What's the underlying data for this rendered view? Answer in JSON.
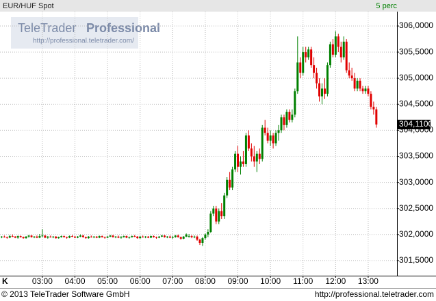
{
  "chart_data": {
    "type": "candlestick",
    "title": "EUR/HUF Spot",
    "interval": "5 perc",
    "watermark": {
      "brand": "TeleTrader",
      "product": "Professional",
      "url": "http://professional.teletrader.com/"
    },
    "footer": {
      "copyright": "© 2013 TeleTrader Software GmbH",
      "url": "http://professional.teletrader.com"
    },
    "corner_label": "K",
    "up_color": "#008000",
    "down_color": "#e00000",
    "last_price": {
      "value": 304.11,
      "label": "304,1100"
    },
    "grid": true,
    "xlim": [
      102,
      833
    ],
    "xticks": [
      {
        "value": 180,
        "label": "03:00"
      },
      {
        "value": 240,
        "label": "04:00"
      },
      {
        "value": 300,
        "label": "05:00"
      },
      {
        "value": 360,
        "label": "06:00"
      },
      {
        "value": 420,
        "label": "07:00"
      },
      {
        "value": 480,
        "label": "08:00"
      },
      {
        "value": 540,
        "label": "09:00"
      },
      {
        "value": 600,
        "label": "10:00"
      },
      {
        "value": 660,
        "label": "11:00"
      },
      {
        "value": 720,
        "label": "12:00"
      },
      {
        "value": 780,
        "label": "13:00"
      }
    ],
    "ylim": [
      301.21,
      306.276
    ],
    "yticks": [
      {
        "value": 301.5,
        "label": "301,5000"
      },
      {
        "value": 302,
        "label": "302,0000"
      },
      {
        "value": 302.5,
        "label": "302,5000"
      },
      {
        "value": 303,
        "label": "303,0000"
      },
      {
        "value": 303.5,
        "label": "303,5000"
      },
      {
        "value": 304,
        "label": "304,0000"
      },
      {
        "value": 304.5,
        "label": "304,5000"
      },
      {
        "value": 305,
        "label": "305,0000"
      },
      {
        "value": 305.5,
        "label": "305,5000"
      },
      {
        "value": 306,
        "label": "306,0000"
      }
    ],
    "x": [
      105,
      110,
      115,
      120,
      125,
      130,
      135,
      140,
      145,
      150,
      155,
      160,
      165,
      170,
      175,
      180,
      185,
      190,
      195,
      200,
      205,
      210,
      215,
      220,
      225,
      230,
      235,
      240,
      245,
      250,
      255,
      260,
      265,
      270,
      275,
      280,
      285,
      290,
      295,
      300,
      305,
      310,
      315,
      320,
      325,
      330,
      335,
      340,
      345,
      350,
      355,
      360,
      365,
      370,
      375,
      380,
      385,
      390,
      395,
      400,
      405,
      410,
      415,
      420,
      425,
      430,
      435,
      440,
      445,
      450,
      455,
      460,
      465,
      470,
      475,
      480,
      485,
      490,
      495,
      500,
      505,
      510,
      515,
      520,
      525,
      530,
      535,
      540,
      545,
      550,
      555,
      560,
      565,
      570,
      575,
      580,
      585,
      590,
      595,
      600,
      605,
      610,
      615,
      620,
      625,
      630,
      635,
      640,
      645,
      650,
      655,
      660,
      665,
      670,
      675,
      680,
      685,
      690,
      695,
      700,
      705,
      710,
      715,
      720,
      725,
      730,
      735,
      740,
      745,
      750,
      755,
      760,
      765,
      770,
      775,
      780,
      785,
      790,
      795
    ],
    "ohlc": [
      [
        301.95,
        301.97,
        301.93,
        301.96
      ],
      [
        301.96,
        301.98,
        301.94,
        301.95
      ],
      [
        301.95,
        301.96,
        301.92,
        301.94
      ],
      [
        301.94,
        301.99,
        301.93,
        301.97
      ],
      [
        301.97,
        302.0,
        301.95,
        301.96
      ],
      [
        301.96,
        301.97,
        301.93,
        301.94
      ],
      [
        301.94,
        301.98,
        301.92,
        301.97
      ],
      [
        301.97,
        301.98,
        301.94,
        301.95
      ],
      [
        301.95,
        301.96,
        301.92,
        301.93
      ],
      [
        301.93,
        301.97,
        301.92,
        301.96
      ],
      [
        301.96,
        301.99,
        301.94,
        301.98
      ],
      [
        301.98,
        301.99,
        301.94,
        301.95
      ],
      [
        301.95,
        301.97,
        301.93,
        301.96
      ],
      [
        301.96,
        301.98,
        301.93,
        301.94
      ],
      [
        301.94,
        302.01,
        301.93,
        301.97
      ],
      [
        301.97,
        302.1,
        301.95,
        301.98
      ],
      [
        301.98,
        301.99,
        301.93,
        301.94
      ],
      [
        301.94,
        301.97,
        301.92,
        301.96
      ],
      [
        301.96,
        301.98,
        301.94,
        301.95
      ],
      [
        301.95,
        301.97,
        301.93,
        301.96
      ],
      [
        301.96,
        301.97,
        301.92,
        301.93
      ],
      [
        301.93,
        301.96,
        301.92,
        301.95
      ],
      [
        301.95,
        301.98,
        301.94,
        301.97
      ],
      [
        301.97,
        301.98,
        301.94,
        301.95
      ],
      [
        301.95,
        301.96,
        301.92,
        301.94
      ],
      [
        301.94,
        301.98,
        301.93,
        301.97
      ],
      [
        301.97,
        301.99,
        301.95,
        301.96
      ],
      [
        301.96,
        301.97,
        301.93,
        301.94
      ],
      [
        301.94,
        301.97,
        301.93,
        301.96
      ],
      [
        301.96,
        302.0,
        301.95,
        301.98
      ],
      [
        301.98,
        301.99,
        301.94,
        301.95
      ],
      [
        301.95,
        301.96,
        301.92,
        301.93
      ],
      [
        301.93,
        301.97,
        301.92,
        301.96
      ],
      [
        301.96,
        301.98,
        301.94,
        301.95
      ],
      [
        301.95,
        301.97,
        301.93,
        301.96
      ],
      [
        301.96,
        301.97,
        301.93,
        301.94
      ],
      [
        301.94,
        301.98,
        301.93,
        301.97
      ],
      [
        301.97,
        301.98,
        301.94,
        301.95
      ],
      [
        301.95,
        301.96,
        301.92,
        301.94
      ],
      [
        301.94,
        301.97,
        301.93,
        301.96
      ],
      [
        301.96,
        301.99,
        301.95,
        301.98
      ],
      [
        301.98,
        301.99,
        301.94,
        301.95
      ],
      [
        301.95,
        301.97,
        301.93,
        301.96
      ],
      [
        301.96,
        301.98,
        301.93,
        301.94
      ],
      [
        301.94,
        301.97,
        301.92,
        301.95
      ],
      [
        301.95,
        301.98,
        301.94,
        301.97
      ],
      [
        301.97,
        301.98,
        301.93,
        301.94
      ],
      [
        301.94,
        301.96,
        301.92,
        301.95
      ],
      [
        301.95,
        301.98,
        301.94,
        301.97
      ],
      [
        301.97,
        301.99,
        301.95,
        301.96
      ],
      [
        301.96,
        301.97,
        301.92,
        301.93
      ],
      [
        301.93,
        301.97,
        301.92,
        301.96
      ],
      [
        301.96,
        301.98,
        301.94,
        301.95
      ],
      [
        301.95,
        301.97,
        301.93,
        301.96
      ],
      [
        301.96,
        301.97,
        301.93,
        301.94
      ],
      [
        301.94,
        301.98,
        301.93,
        301.97
      ],
      [
        301.97,
        301.98,
        301.94,
        301.95
      ],
      [
        301.95,
        301.96,
        301.92,
        301.94
      ],
      [
        301.94,
        301.97,
        301.93,
        301.96
      ],
      [
        301.96,
        301.99,
        301.95,
        301.98
      ],
      [
        301.98,
        301.99,
        301.94,
        301.95
      ],
      [
        301.95,
        301.97,
        301.93,
        301.96
      ],
      [
        301.96,
        301.98,
        301.93,
        301.94
      ],
      [
        301.94,
        301.97,
        301.92,
        301.95
      ],
      [
        301.95,
        301.99,
        301.94,
        301.98
      ],
      [
        301.98,
        302.0,
        301.94,
        301.95
      ],
      [
        301.95,
        301.96,
        301.9,
        301.92
      ],
      [
        301.92,
        301.97,
        301.91,
        301.96
      ],
      [
        301.96,
        302.02,
        301.95,
        302.0
      ],
      [
        301.96,
        302.01,
        301.94,
        301.97
      ],
      [
        301.97,
        301.99,
        301.93,
        301.95
      ],
      [
        301.95,
        301.98,
        301.93,
        301.96
      ],
      [
        301.96,
        301.98,
        301.88,
        301.9
      ],
      [
        301.9,
        301.92,
        301.8,
        301.84
      ],
      [
        301.84,
        301.95,
        301.78,
        301.93
      ],
      [
        301.93,
        302.02,
        301.9,
        302.0
      ],
      [
        302.0,
        302.1,
        301.95,
        302.05
      ],
      [
        302.05,
        302.45,
        302.03,
        302.4
      ],
      [
        302.4,
        302.55,
        302.35,
        302.5
      ],
      [
        302.5,
        302.55,
        302.2,
        302.25
      ],
      [
        302.25,
        302.5,
        302.2,
        302.45
      ],
      [
        302.45,
        302.6,
        302.3,
        302.35
      ],
      [
        302.35,
        302.8,
        302.3,
        302.75
      ],
      [
        302.75,
        303.1,
        302.7,
        303.05
      ],
      [
        303.05,
        303.2,
        302.85,
        302.9
      ],
      [
        302.9,
        303.3,
        302.85,
        303.25
      ],
      [
        303.25,
        303.6,
        303.2,
        303.55
      ],
      [
        303.55,
        303.7,
        303.2,
        303.3
      ],
      [
        303.3,
        303.5,
        303.15,
        303.4
      ],
      [
        303.4,
        303.6,
        303.3,
        303.35
      ],
      [
        303.35,
        303.95,
        303.3,
        303.9
      ],
      [
        303.9,
        304.0,
        303.6,
        303.65
      ],
      [
        303.65,
        303.75,
        303.4,
        303.5
      ],
      [
        303.5,
        303.7,
        303.3,
        303.4
      ],
      [
        303.4,
        303.6,
        303.2,
        303.55
      ],
      [
        303.55,
        303.65,
        303.35,
        303.45
      ],
      [
        303.45,
        304.1,
        303.4,
        304.05
      ],
      [
        304.05,
        304.2,
        303.9,
        303.95
      ],
      [
        303.95,
        304.05,
        303.75,
        303.8
      ],
      [
        303.8,
        304.0,
        303.7,
        303.9
      ],
      [
        303.9,
        303.95,
        303.65,
        303.75
      ],
      [
        303.75,
        304.0,
        303.7,
        303.95
      ],
      [
        303.95,
        304.1,
        303.8,
        304.0
      ],
      [
        304.0,
        304.3,
        303.95,
        304.25
      ],
      [
        304.25,
        304.3,
        304.0,
        304.1
      ],
      [
        304.1,
        304.4,
        304.05,
        304.35
      ],
      [
        304.35,
        304.4,
        304.15,
        304.2
      ],
      [
        304.2,
        304.4,
        304.15,
        304.3
      ],
      [
        304.3,
        304.8,
        304.25,
        304.75
      ],
      [
        304.75,
        305.8,
        304.7,
        305.3
      ],
      [
        305.3,
        305.4,
        305.0,
        305.1
      ],
      [
        305.1,
        305.6,
        305.05,
        305.5
      ],
      [
        305.5,
        305.6,
        305.3,
        305.4
      ],
      [
        305.4,
        305.6,
        305.35,
        305.55
      ],
      [
        305.55,
        305.6,
        305.2,
        305.25
      ],
      [
        305.25,
        305.4,
        305.0,
        305.1
      ],
      [
        305.1,
        305.2,
        304.8,
        304.9
      ],
      [
        304.9,
        305.0,
        304.55,
        304.65
      ],
      [
        304.65,
        304.9,
        304.5,
        304.8
      ],
      [
        304.8,
        305.0,
        304.6,
        304.7
      ],
      [
        304.7,
        305.3,
        304.65,
        305.25
      ],
      [
        305.25,
        305.7,
        305.2,
        305.65
      ],
      [
        305.65,
        305.75,
        305.4,
        305.45
      ],
      [
        305.45,
        305.9,
        305.4,
        305.8
      ],
      [
        305.8,
        305.85,
        305.5,
        305.6
      ],
      [
        305.6,
        305.7,
        305.3,
        305.4
      ],
      [
        305.4,
        305.8,
        305.35,
        305.7
      ],
      [
        305.7,
        305.75,
        305.1,
        305.15
      ],
      [
        305.15,
        305.3,
        305.0,
        305.05
      ],
      [
        305.05,
        305.2,
        304.95,
        305.0
      ],
      [
        305.0,
        305.1,
        304.75,
        304.8
      ],
      [
        304.8,
        305.0,
        304.75,
        304.95
      ],
      [
        304.95,
        305.0,
        304.75,
        304.8
      ],
      [
        304.8,
        304.85,
        304.7,
        304.75
      ],
      [
        304.75,
        304.85,
        304.7,
        304.8
      ],
      [
        304.8,
        304.85,
        304.65,
        304.7
      ],
      [
        304.7,
        304.75,
        304.4,
        304.45
      ],
      [
        304.45,
        304.55,
        304.3,
        304.4
      ],
      [
        304.4,
        304.45,
        304.05,
        304.11
      ]
    ]
  }
}
